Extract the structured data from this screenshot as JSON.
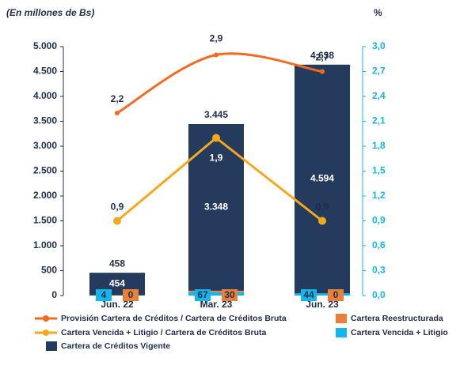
{
  "chart_data": {
    "type": "bar",
    "title": "(En millones de Bs)",
    "y2_title": "%",
    "categories": [
      "Jun. 22",
      "Mar. 23",
      "Jun. 23"
    ],
    "ylim": [
      0,
      5000
    ],
    "yticks": [
      0,
      {
        "value": 500,
        "label": "500"
      },
      {
        "value": 1000,
        "label": "1.000"
      },
      {
        "value": 1500,
        "label": "1.500"
      },
      {
        "value": 2000,
        "label": "2.000"
      },
      {
        "value": 2500,
        "label": "2.500"
      },
      {
        "value": 3000,
        "label": "3.000"
      },
      {
        "value": 3500,
        "label": "3.500"
      },
      {
        "value": 4000,
        "label": "4.000"
      },
      {
        "value": 4500,
        "label": "4.500"
      },
      {
        "value": 5000,
        "label": "5.000"
      }
    ],
    "y2lim": [
      0,
      3
    ],
    "y2ticks": [
      {
        "value": 0,
        "label": "0,0"
      },
      {
        "value": 0.3,
        "label": "0,3"
      },
      {
        "value": 0.6,
        "label": "0,6"
      },
      {
        "value": 0.9,
        "label": "0,9"
      },
      {
        "value": 1.2,
        "label": "1,2"
      },
      {
        "value": 1.5,
        "label": "1,5"
      },
      {
        "value": 1.8,
        "label": "1,8"
      },
      {
        "value": 2.1,
        "label": "2,1"
      },
      {
        "value": 2.4,
        "label": "2,4"
      },
      {
        "value": 2.7,
        "label": "2,7"
      },
      {
        "value": 3.0,
        "label": "3,0"
      }
    ],
    "series": [
      {
        "name": "Cartera Vencida + Litigio",
        "type": "bar",
        "color": "#13b5ea",
        "values": [
          4,
          67,
          44
        ]
      },
      {
        "name": "Cartera Reestructurada",
        "type": "bar",
        "color": "#e8803a",
        "values": [
          0,
          30,
          0
        ]
      },
      {
        "name": "Cartera de Créditos Vigente",
        "type": "bar",
        "color": "#243b5e",
        "values": [
          454,
          3348,
          4594
        ],
        "value_labels": [
          "454",
          "3.348",
          "4.594"
        ]
      },
      {
        "name": "Provisión Cartera de Créditos / Cartera de Créditos Bruta",
        "type": "line",
        "axis": "y2",
        "smooth": true,
        "color": "#f26b21",
        "values": [
          2.2,
          2.9,
          2.7
        ],
        "value_labels": [
          "2,2",
          "2,9",
          "2,7"
        ]
      },
      {
        "name": "Cartera Vencida + Litigio / Cartera de Créditos Bruta",
        "type": "line",
        "axis": "y2",
        "smooth": false,
        "color": "#f5a81c",
        "values": [
          0.9,
          1.9,
          0.9
        ],
        "value_labels": [
          "0,9",
          "1,9",
          "0,9"
        ]
      }
    ],
    "totals": [
      458,
      3445,
      4638
    ],
    "total_labels": [
      "458",
      "3.445",
      "4.638"
    ]
  }
}
